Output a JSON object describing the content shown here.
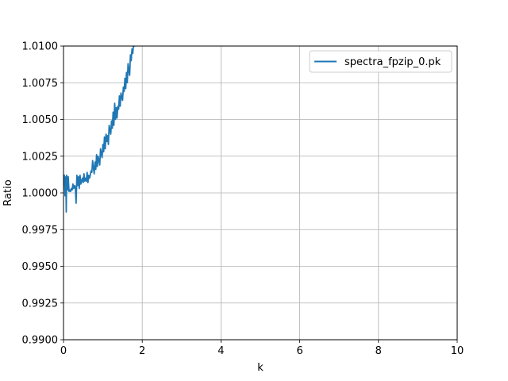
{
  "chart_data": {
    "type": "line",
    "xlabel": "k",
    "ylabel": "Ratio",
    "xlim": [
      0,
      10
    ],
    "ylim": [
      0.99,
      1.01
    ],
    "xticks": [
      "0",
      "2",
      "4",
      "6",
      "8",
      "10"
    ],
    "xtick_values": [
      0,
      2,
      4,
      6,
      8,
      10
    ],
    "yticks": [
      "0.9900",
      "0.9925",
      "0.9950",
      "0.9975",
      "1.0000",
      "1.0025",
      "1.0050",
      "1.0075",
      "1.0100"
    ],
    "ytick_values": [
      0.99,
      0.9925,
      0.995,
      0.9975,
      1.0,
      1.0025,
      1.005,
      1.0075,
      1.01
    ],
    "grid": true,
    "legend_position": "top-right",
    "colors": {
      "series": "#1f77b4",
      "grid": "#b0b0b0"
    },
    "series": [
      {
        "name": "spectra_fpzip_0.pk",
        "x": [
          0.02,
          0.04,
          0.05,
          0.06,
          0.07,
          0.08,
          0.1,
          0.12,
          0.14,
          0.16,
          0.18,
          0.2,
          0.22,
          0.24,
          0.26,
          0.28,
          0.3,
          0.32,
          0.34,
          0.36,
          0.38,
          0.4,
          0.42,
          0.44,
          0.46,
          0.48,
          0.5,
          0.52,
          0.54,
          0.56,
          0.58,
          0.6,
          0.62,
          0.64,
          0.66,
          0.68,
          0.7,
          0.72,
          0.74,
          0.76,
          0.78,
          0.8,
          0.82,
          0.84,
          0.86,
          0.88,
          0.9,
          0.92,
          0.94,
          0.96,
          0.98,
          1.0,
          1.02,
          1.04,
          1.06,
          1.08,
          1.1,
          1.12,
          1.14,
          1.16,
          1.18,
          1.2,
          1.22,
          1.24,
          1.26,
          1.28,
          1.3,
          1.32,
          1.34,
          1.36,
          1.38,
          1.4,
          1.42,
          1.44,
          1.46,
          1.48,
          1.5,
          1.52,
          1.54,
          1.56,
          1.58,
          1.6,
          1.62,
          1.64,
          1.66,
          1.68,
          1.7,
          1.72,
          1.74,
          1.76,
          1.78,
          1.8,
          1.82,
          1.84
        ],
        "y": [
          1.0012,
          0.9998,
          1.0009,
          1.0011,
          0.9987,
          1.0012,
          1.0002,
          1.0011,
          1.0001,
          1.0002,
          1.0001,
          1.0003,
          1.0002,
          1.0006,
          1.0003,
          1.0005,
          1.0004,
          0.9993,
          1.0012,
          1.0005,
          1.0011,
          1.0003,
          1.0012,
          1.0006,
          1.0008,
          1.001,
          1.0007,
          1.0013,
          1.0008,
          1.001,
          1.0008,
          1.0014,
          1.0007,
          1.0012,
          1.001,
          1.0012,
          1.0015,
          1.0014,
          1.0022,
          1.0017,
          1.0013,
          1.0021,
          1.0016,
          1.0026,
          1.0018,
          1.0025,
          1.0022,
          1.0019,
          1.003,
          1.0027,
          1.0024,
          1.0033,
          1.0028,
          1.0038,
          1.003,
          1.004,
          1.0035,
          1.0039,
          1.0033,
          1.0046,
          1.0043,
          1.004,
          1.0049,
          1.0044,
          1.0055,
          1.0046,
          1.0061,
          1.005,
          1.0058,
          1.0051,
          1.0059,
          1.0057,
          1.0066,
          1.0059,
          1.0068,
          1.0065,
          1.0063,
          1.0072,
          1.0069,
          1.0078,
          1.0071,
          1.0082,
          1.0075,
          1.0088,
          1.0083,
          1.008,
          1.0094,
          1.009,
          1.0098,
          1.0095,
          1.0102,
          1.01,
          1.0104,
          1.0106
        ]
      }
    ]
  }
}
